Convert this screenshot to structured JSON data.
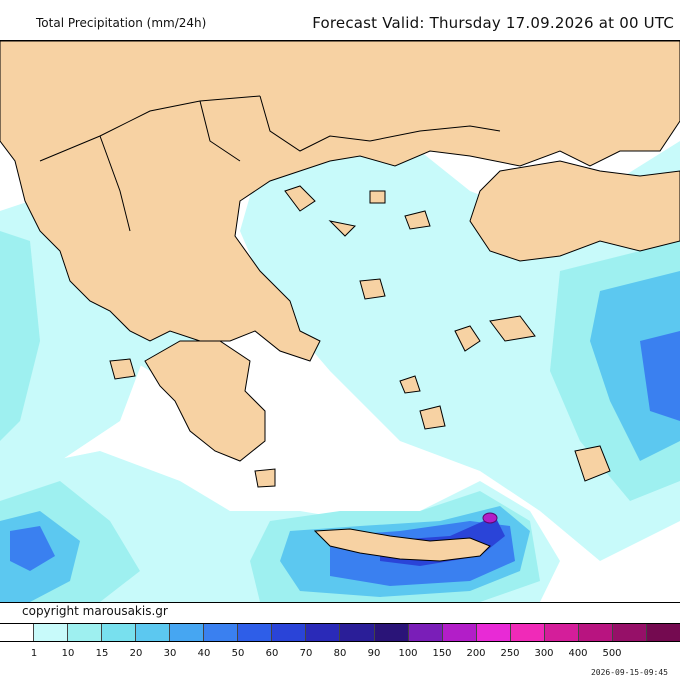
{
  "header": {
    "title": "Total Precipitation (mm/24h)",
    "valid": "Forecast Valid:  Thursday 17.09.2026 at 00 UTC"
  },
  "footer": {
    "copyright": "copyright marousakis.gr",
    "timestamp": "2026-09-15-09:45"
  },
  "legend": {
    "unit": "mm/24h",
    "colors": [
      "#ffffff",
      "#c8fafa",
      "#9ef0f0",
      "#78e0ee",
      "#5cc8f0",
      "#46a6f2",
      "#3a80f0",
      "#2e5ee8",
      "#2a44d8",
      "#2a2ab8",
      "#2a1e98",
      "#2a1478",
      "#7a1eb8",
      "#b21ec8",
      "#e82ad6",
      "#f02ab8",
      "#d41e9a",
      "#b81480",
      "#961068",
      "#740a50"
    ],
    "labels": [
      "1",
      "10",
      "15",
      "20",
      "30",
      "40",
      "50",
      "60",
      "70",
      "80",
      "90",
      "100",
      "150",
      "200",
      "250",
      "300",
      "400",
      "500"
    ]
  },
  "map": {
    "land_color": "#f7d2a3",
    "sea_color": "#ffffff",
    "border_color": "#000000"
  }
}
